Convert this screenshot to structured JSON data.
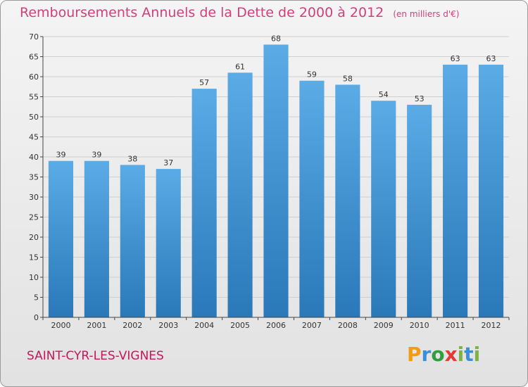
{
  "title": {
    "main": "Remboursements Annuels de la Dette de 2000 à 2012",
    "unit": "(en milliers d'€)"
  },
  "commune": "SAINT-CYR-LES-VIGNES",
  "brand": {
    "letters": [
      "P",
      "r",
      "o",
      "x",
      "i",
      "t",
      "i"
    ],
    "colors": [
      "#f39c12",
      "#3a8fd6",
      "#2e9e3e",
      "#e53935",
      "#7cb342",
      "#3a8fd6",
      "#7cb342"
    ]
  },
  "colors": {
    "bar_top": "#5aabe6",
    "bar_bottom": "#2a78b8",
    "grid": "#cfcfcf",
    "axis": "#444444"
  },
  "chart_data": {
    "type": "bar",
    "title": "Remboursements Annuels de la Dette de 2000 à 2012",
    "xlabel": "",
    "ylabel": "",
    "categories": [
      "2000",
      "2001",
      "2002",
      "2003",
      "2004",
      "2005",
      "2006",
      "2007",
      "2008",
      "2009",
      "2010",
      "2011",
      "2012"
    ],
    "values": [
      39,
      39,
      38,
      37,
      57,
      61,
      68,
      59,
      58,
      54,
      53,
      63,
      63
    ],
    "ylim": [
      0,
      70
    ],
    "yticks": [
      0,
      5,
      10,
      15,
      20,
      25,
      30,
      35,
      40,
      45,
      50,
      55,
      60,
      65,
      70
    ],
    "grid": true,
    "legend": "none"
  }
}
